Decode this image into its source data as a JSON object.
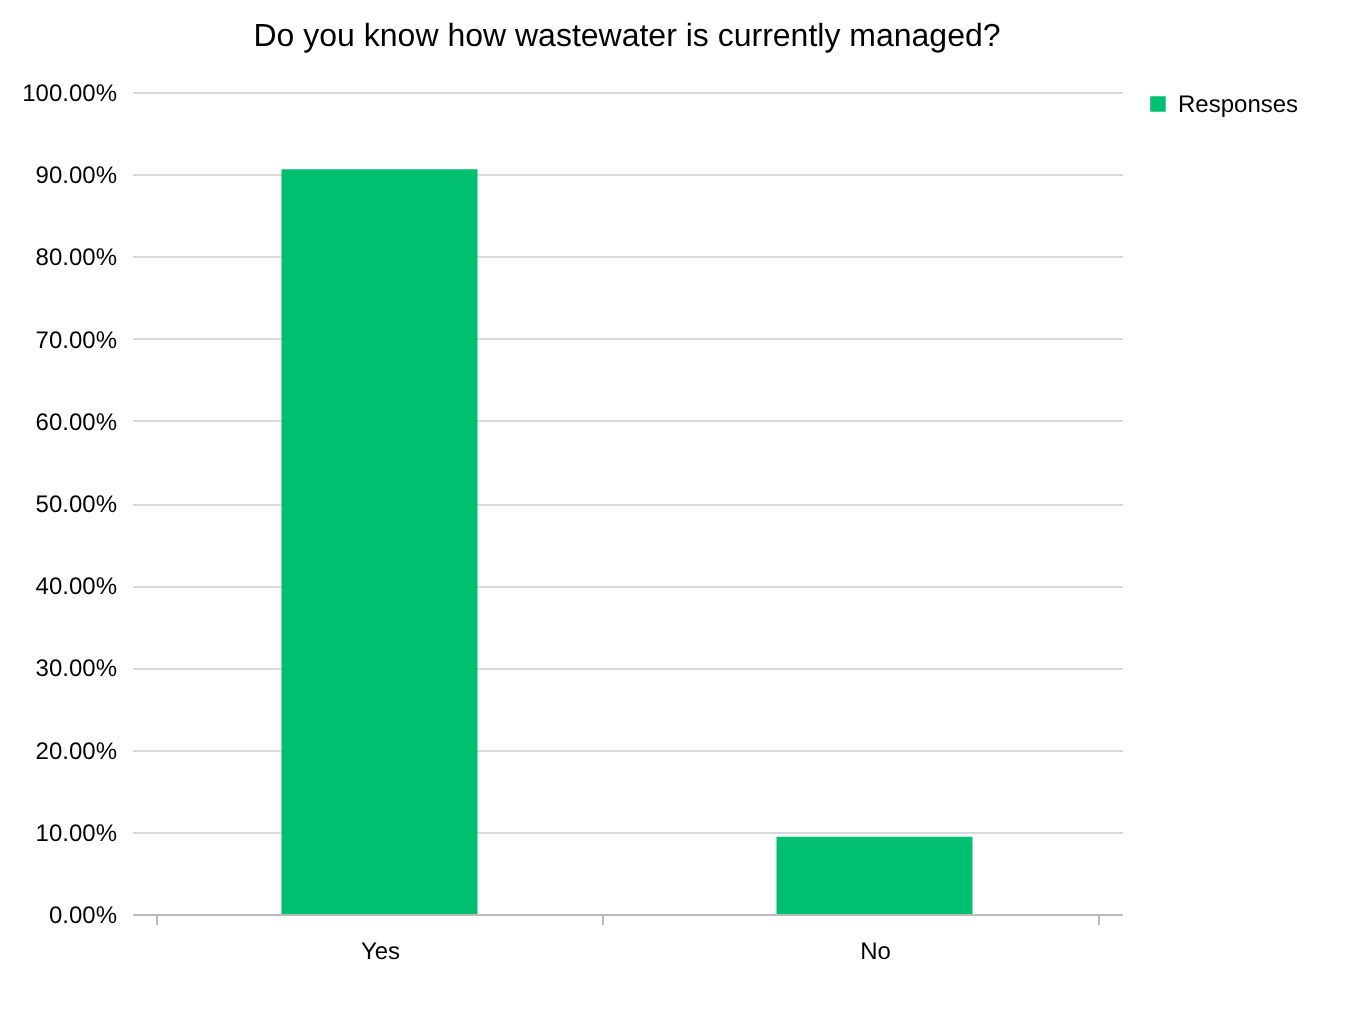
{
  "chart_data": {
    "type": "bar",
    "title": "Do you know how wastewater is currently managed?",
    "categories": [
      "Yes",
      "No"
    ],
    "series": [
      {
        "name": "Responses",
        "color": "#00bf6f",
        "values": [
          90.6,
          9.4
        ]
      }
    ],
    "ylim": [
      0,
      100
    ],
    "yticks": [
      {
        "value": 0,
        "label": "0.00%"
      },
      {
        "value": 10,
        "label": "10.00%"
      },
      {
        "value": 20,
        "label": "20.00%"
      },
      {
        "value": 30,
        "label": "30.00%"
      },
      {
        "value": 40,
        "label": "40.00%"
      },
      {
        "value": 50,
        "label": "50.00%"
      },
      {
        "value": 60,
        "label": "60.00%"
      },
      {
        "value": 70,
        "label": "70.00%"
      },
      {
        "value": 80,
        "label": "80.00%"
      },
      {
        "value": 90,
        "label": "90.00%"
      },
      {
        "value": 100,
        "label": "100.00%"
      }
    ],
    "grid": "y",
    "legend": "right"
  }
}
